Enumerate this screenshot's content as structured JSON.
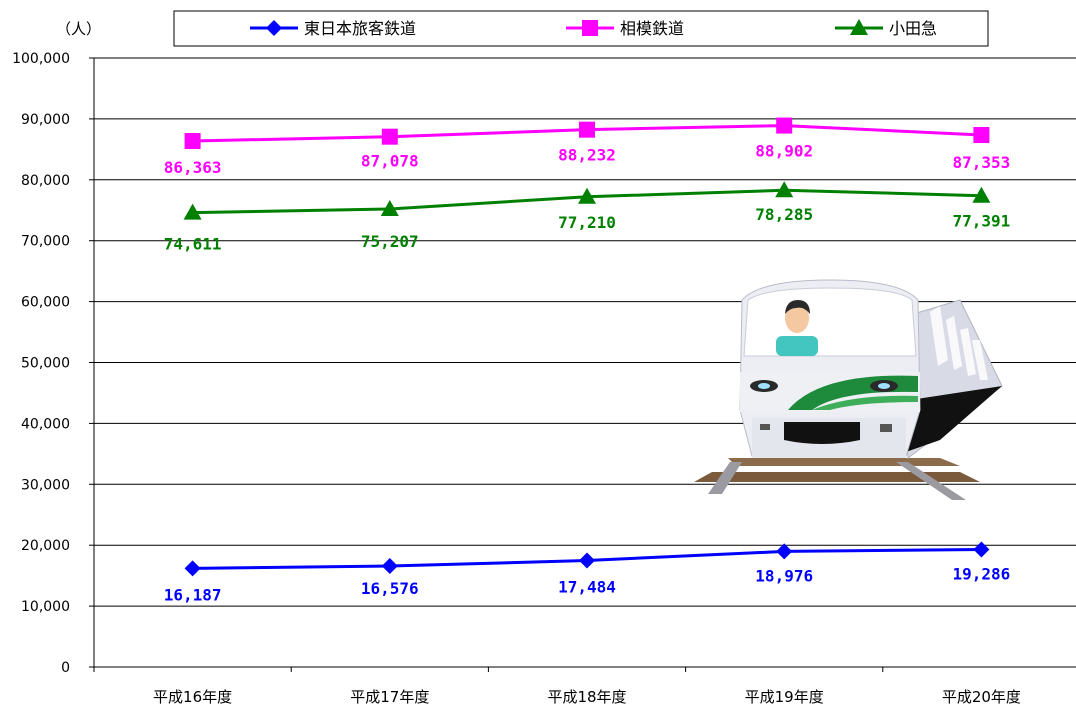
{
  "chart_data": {
    "type": "line",
    "title": "",
    "ylabel": "（人）",
    "xlabel": "",
    "ylim": [
      0,
      100000
    ],
    "yticks": [
      "0",
      "10,000",
      "20,000",
      "30,000",
      "40,000",
      "50,000",
      "60,000",
      "70,000",
      "80,000",
      "90,000",
      "100,000"
    ],
    "categories": [
      "平成16年度",
      "平成17年度",
      "平成18年度",
      "平成19年度",
      "平成20年度"
    ],
    "grid": true,
    "legend_position": "top",
    "series": [
      {
        "name": "東日本旅客鉄道",
        "marker": "diamond",
        "color": "#0000ff",
        "values": [
          16187,
          16576,
          17484,
          18976,
          19286
        ],
        "labels": [
          "16,187",
          "16,576",
          "17,484",
          "18,976",
          "19,286"
        ]
      },
      {
        "name": "相模鉄道",
        "marker": "square",
        "color": "#ff00ff",
        "values": [
          86363,
          87078,
          88232,
          88902,
          87353
        ],
        "labels": [
          "86,363",
          "87,078",
          "88,232",
          "88,902",
          "87,353"
        ]
      },
      {
        "name": "小田急",
        "marker": "triangle",
        "color": "#008000",
        "values": [
          74611,
          75207,
          77210,
          78285,
          77391
        ],
        "labels": [
          "74,611",
          "75,207",
          "77,210",
          "78,285",
          "77,391"
        ]
      }
    ]
  },
  "illustration": {
    "icon": "train-illustration-icon",
    "colors": {
      "body": "#e8e8f0",
      "stripe": "#1e8a3c",
      "rails": "#8b6b4a"
    }
  }
}
